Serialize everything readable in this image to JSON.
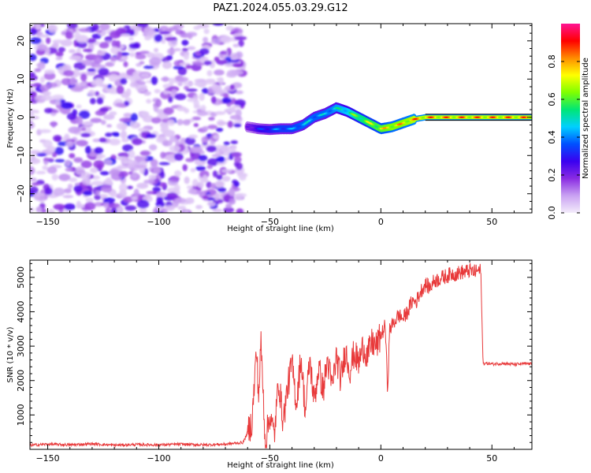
{
  "title": "PAZ1.2024.055.03.29.G12",
  "chart_data": [
    {
      "type": "heatmap",
      "xlabel": "Height of straight line (km)",
      "ylabel": "Frequency (Hz)",
      "xlim": [
        -158,
        68
      ],
      "ylim": [
        -25,
        24.5
      ],
      "xticks": [
        -150,
        -100,
        -50,
        0,
        50
      ],
      "yticks": [
        -20,
        -10,
        0,
        10,
        20
      ],
      "colorbar": {
        "label": "Normalized spectral amplitude",
        "range": [
          0.0,
          1.0
        ],
        "ticks": [
          0.0,
          0.2,
          0.4,
          0.6,
          0.8
        ],
        "colors": [
          "#f4ecfb",
          "#c9a2f2",
          "#8a2be2",
          "#3a00f0",
          "#0050ff",
          "#00d0ff",
          "#00e676",
          "#7fff00",
          "#ffff00",
          "#ff8c00",
          "#ff0000",
          "#ff1493"
        ]
      },
      "signal_track": {
        "description_free_x": [
          -60,
          -55,
          -50,
          -45,
          -40,
          -35,
          -30,
          -25,
          -20,
          -15,
          -10,
          -5,
          0,
          5,
          10,
          15,
          20,
          30,
          40,
          50,
          60,
          68
        ],
        "frequency_hz": [
          -2.5,
          -3.0,
          -3.2,
          -3.0,
          -3.0,
          -2.0,
          0,
          1.0,
          2.5,
          1.5,
          0,
          -1.5,
          -3.0,
          -2.5,
          -1.5,
          -0.5,
          0,
          0,
          0,
          0,
          0,
          0
        ],
        "amplitude": [
          0.25,
          0.35,
          0.4,
          0.45,
          0.45,
          0.5,
          0.5,
          0.5,
          0.55,
          0.6,
          0.7,
          0.75,
          0.8,
          0.85,
          0.85,
          0.9,
          0.9,
          0.9,
          0.9,
          0.9,
          0.9,
          0.9
        ]
      },
      "noise_region_x": [
        -158,
        -62
      ]
    },
    {
      "type": "line",
      "xlabel": "Height of straight line (km)",
      "ylabel": "SNR (10 * v/v)",
      "xlim": [
        -158,
        68
      ],
      "ylim": [
        0,
        5500
      ],
      "xticks": [
        -150,
        -100,
        -50,
        0,
        50
      ],
      "yticks": [
        1000,
        2000,
        3000,
        4000,
        5000
      ],
      "color": "#e8393a",
      "series": [
        {
          "x": [
            -158,
            -150,
            -140,
            -130,
            -120,
            -110,
            -100,
            -90,
            -80,
            -70,
            -62,
            -58,
            -56,
            -55,
            -54,
            -52,
            -50,
            -48,
            -46,
            -44,
            -42,
            -40,
            -38,
            -36,
            -34,
            -32,
            -30,
            -28,
            -26,
            -24,
            -22,
            -20,
            -18,
            -16,
            -14,
            -12,
            -10,
            -8,
            -6,
            -4,
            -2,
            0,
            2,
            3,
            4,
            6,
            8,
            10,
            12,
            14,
            16,
            18,
            20,
            22,
            24,
            26,
            28,
            30,
            32,
            34,
            36,
            38,
            40,
            42,
            44,
            45,
            46,
            48,
            50,
            55,
            60,
            65,
            68
          ],
          "y": [
            120,
            150,
            130,
            160,
            120,
            140,
            130,
            150,
            130,
            150,
            200,
            800,
            2900,
            1500,
            3100,
            200,
            1000,
            400,
            2000,
            800,
            1800,
            2500,
            1300,
            2700,
            1100,
            2600,
            1400,
            2400,
            1700,
            2600,
            1800,
            2700,
            2000,
            2900,
            2300,
            2800,
            2500,
            3000,
            2700,
            3100,
            3000,
            3300,
            3600,
            1700,
            3500,
            3700,
            3900,
            3800,
            4000,
            4300,
            4300,
            4600,
            4800,
            4700,
            4900,
            4950,
            5000,
            5050,
            5100,
            5100,
            5150,
            5150,
            5200,
            5150,
            5200,
            5180,
            2500,
            2500,
            2480,
            2500,
            2470,
            2490,
            2480
          ]
        }
      ]
    }
  ]
}
